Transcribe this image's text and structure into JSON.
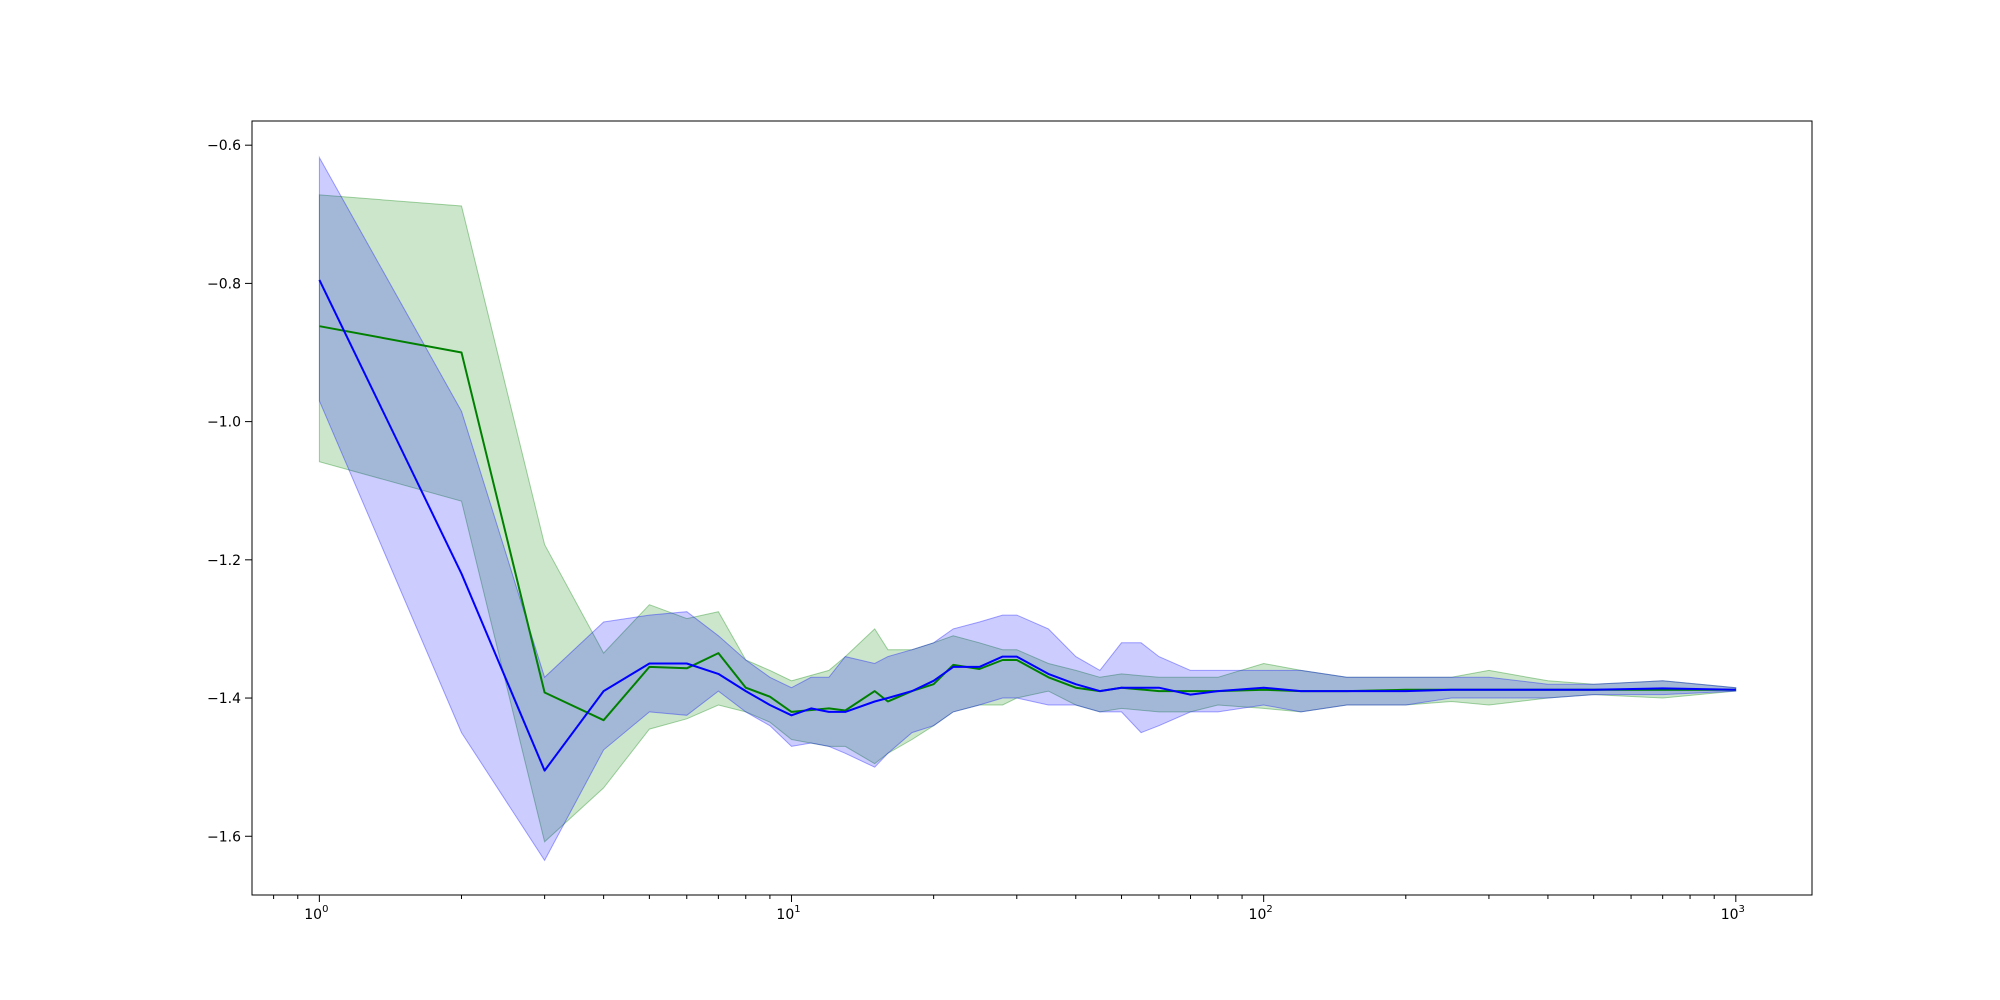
{
  "chart_data": {
    "type": "line",
    "title": "",
    "xlabel": "",
    "ylabel": "",
    "xscale": "log",
    "xlim": [
      0.72,
      1450
    ],
    "ylim": [
      -1.685,
      -0.565
    ],
    "grid": false,
    "legend": "none",
    "xticks": [
      {
        "value": 1,
        "base": "10",
        "exp": "0"
      },
      {
        "value": 10,
        "base": "10",
        "exp": "1"
      },
      {
        "value": 100,
        "base": "10",
        "exp": "2"
      },
      {
        "value": 1000,
        "base": "10",
        "exp": "3"
      }
    ],
    "yticks": [
      {
        "value": -0.6,
        "label": "−0.6"
      },
      {
        "value": -0.8,
        "label": "−0.8"
      },
      {
        "value": -1.0,
        "label": "−1.0"
      },
      {
        "value": -1.2,
        "label": "−1.2"
      },
      {
        "value": -1.4,
        "label": "−1.4"
      },
      {
        "value": -1.6,
        "label": "−1.6"
      }
    ],
    "series": [
      {
        "color": "#008000",
        "band_color": "#008000",
        "band_opacity": 0.2,
        "x": [
          1,
          2,
          3,
          4,
          5,
          6,
          7,
          8,
          9,
          10,
          12,
          13,
          15,
          16,
          18,
          20,
          22,
          25,
          28,
          30,
          35,
          40,
          45,
          50,
          60,
          70,
          80,
          100,
          120,
          150,
          200,
          250,
          300,
          400,
          500,
          700,
          1000
        ],
        "mean": [
          -0.862,
          -0.9,
          -1.392,
          -1.432,
          -1.355,
          -1.357,
          -1.335,
          -1.385,
          -1.398,
          -1.42,
          -1.415,
          -1.418,
          -1.39,
          -1.405,
          -1.39,
          -1.38,
          -1.352,
          -1.358,
          -1.345,
          -1.345,
          -1.37,
          -1.385,
          -1.39,
          -1.385,
          -1.39,
          -1.39,
          -1.39,
          -1.388,
          -1.39,
          -1.39,
          -1.388,
          -1.388,
          -1.388,
          -1.388,
          -1.388,
          -1.388,
          -1.388
        ],
        "upper": [
          -0.672,
          -0.688,
          -1.178,
          -1.335,
          -1.265,
          -1.285,
          -1.275,
          -1.345,
          -1.36,
          -1.375,
          -1.36,
          -1.34,
          -1.3,
          -1.33,
          -1.33,
          -1.32,
          -1.31,
          -1.32,
          -1.33,
          -1.33,
          -1.35,
          -1.36,
          -1.37,
          -1.365,
          -1.37,
          -1.37,
          -1.37,
          -1.35,
          -1.36,
          -1.37,
          -1.37,
          -1.37,
          -1.36,
          -1.375,
          -1.38,
          -1.375,
          -1.385
        ],
        "lower": [
          -1.058,
          -1.115,
          -1.608,
          -1.53,
          -1.445,
          -1.43,
          -1.41,
          -1.42,
          -1.435,
          -1.46,
          -1.47,
          -1.47,
          -1.495,
          -1.48,
          -1.46,
          -1.44,
          -1.42,
          -1.41,
          -1.41,
          -1.4,
          -1.39,
          -1.41,
          -1.42,
          -1.415,
          -1.42,
          -1.42,
          -1.41,
          -1.415,
          -1.42,
          -1.41,
          -1.41,
          -1.405,
          -1.41,
          -1.4,
          -1.395,
          -1.4,
          -1.39
        ]
      },
      {
        "color": "#0000ff",
        "band_color": "#0000ff",
        "band_opacity": 0.2,
        "x": [
          1,
          2,
          3,
          4,
          5,
          6,
          7,
          8,
          9,
          10,
          11,
          12,
          13,
          15,
          16,
          18,
          20,
          22,
          25,
          28,
          30,
          35,
          40,
          45,
          50,
          55,
          60,
          70,
          80,
          100,
          120,
          150,
          200,
          250,
          300,
          400,
          500,
          700,
          1000
        ],
        "mean": [
          -0.795,
          -1.22,
          -1.505,
          -1.39,
          -1.35,
          -1.35,
          -1.365,
          -1.39,
          -1.41,
          -1.425,
          -1.415,
          -1.42,
          -1.42,
          -1.405,
          -1.4,
          -1.39,
          -1.375,
          -1.355,
          -1.355,
          -1.34,
          -1.34,
          -1.365,
          -1.38,
          -1.39,
          -1.385,
          -1.385,
          -1.385,
          -1.395,
          -1.39,
          -1.385,
          -1.39,
          -1.39,
          -1.39,
          -1.388,
          -1.388,
          -1.388,
          -1.388,
          -1.386,
          -1.388
        ],
        "upper": [
          -0.618,
          -0.985,
          -1.37,
          -1.29,
          -1.28,
          -1.275,
          -1.31,
          -1.345,
          -1.37,
          -1.385,
          -1.37,
          -1.37,
          -1.34,
          -1.35,
          -1.34,
          -1.33,
          -1.32,
          -1.3,
          -1.29,
          -1.28,
          -1.28,
          -1.3,
          -1.34,
          -1.36,
          -1.32,
          -1.32,
          -1.34,
          -1.36,
          -1.36,
          -1.36,
          -1.36,
          -1.37,
          -1.37,
          -1.37,
          -1.37,
          -1.38,
          -1.38,
          -1.375,
          -1.385
        ],
        "lower": [
          -0.97,
          -1.45,
          -1.635,
          -1.475,
          -1.42,
          -1.425,
          -1.39,
          -1.42,
          -1.44,
          -1.47,
          -1.465,
          -1.47,
          -1.48,
          -1.5,
          -1.48,
          -1.45,
          -1.44,
          -1.42,
          -1.41,
          -1.4,
          -1.4,
          -1.41,
          -1.41,
          -1.42,
          -1.42,
          -1.45,
          -1.44,
          -1.42,
          -1.42,
          -1.41,
          -1.42,
          -1.41,
          -1.41,
          -1.4,
          -1.4,
          -1.4,
          -1.395,
          -1.395,
          -1.39
        ]
      }
    ]
  }
}
